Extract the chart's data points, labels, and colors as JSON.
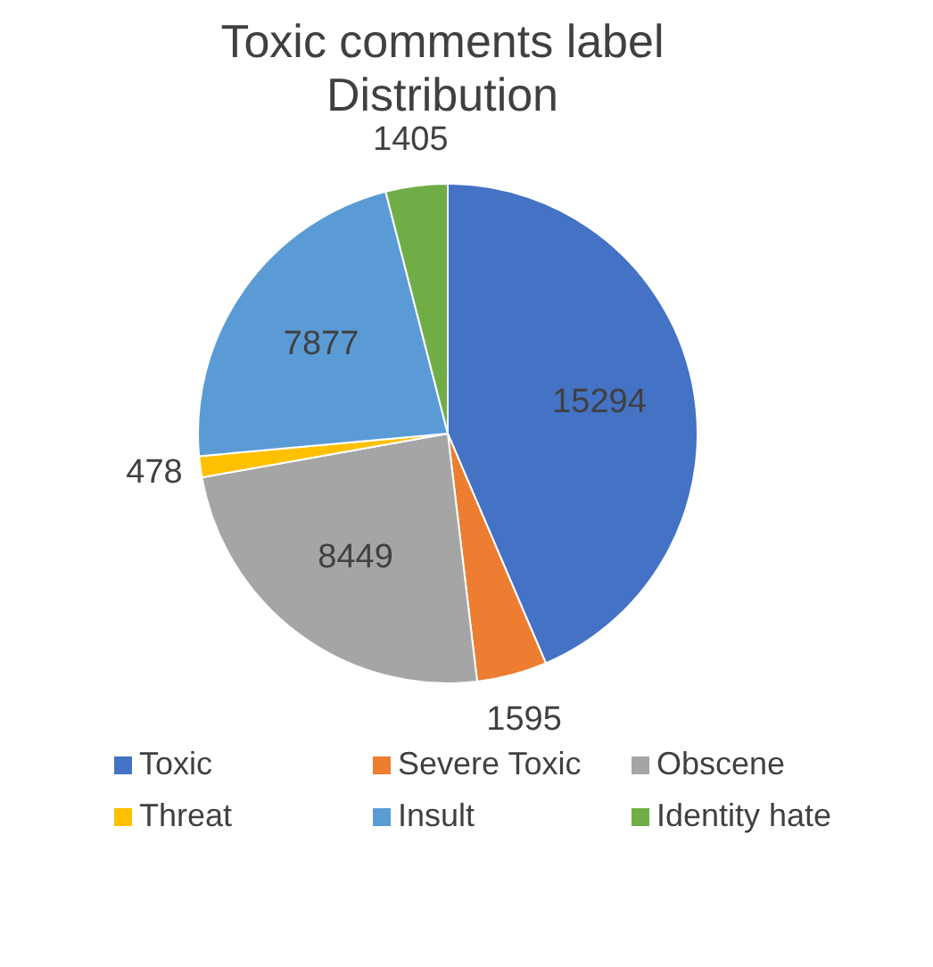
{
  "chart_data": {
    "type": "pie",
    "title": "Toxic comments label Distribution",
    "categories": [
      "Toxic",
      "Severe Toxic",
      "Obscene",
      "Threat",
      "Insult",
      "Identity hate"
    ],
    "values": [
      15294,
      1595,
      8449,
      478,
      7877,
      1405
    ],
    "colors": [
      "#4472c4",
      "#ed7d31",
      "#a5a5a5",
      "#ffc000",
      "#5b9bd5",
      "#70ad47"
    ],
    "data_labels": true,
    "legend": "bottom"
  }
}
